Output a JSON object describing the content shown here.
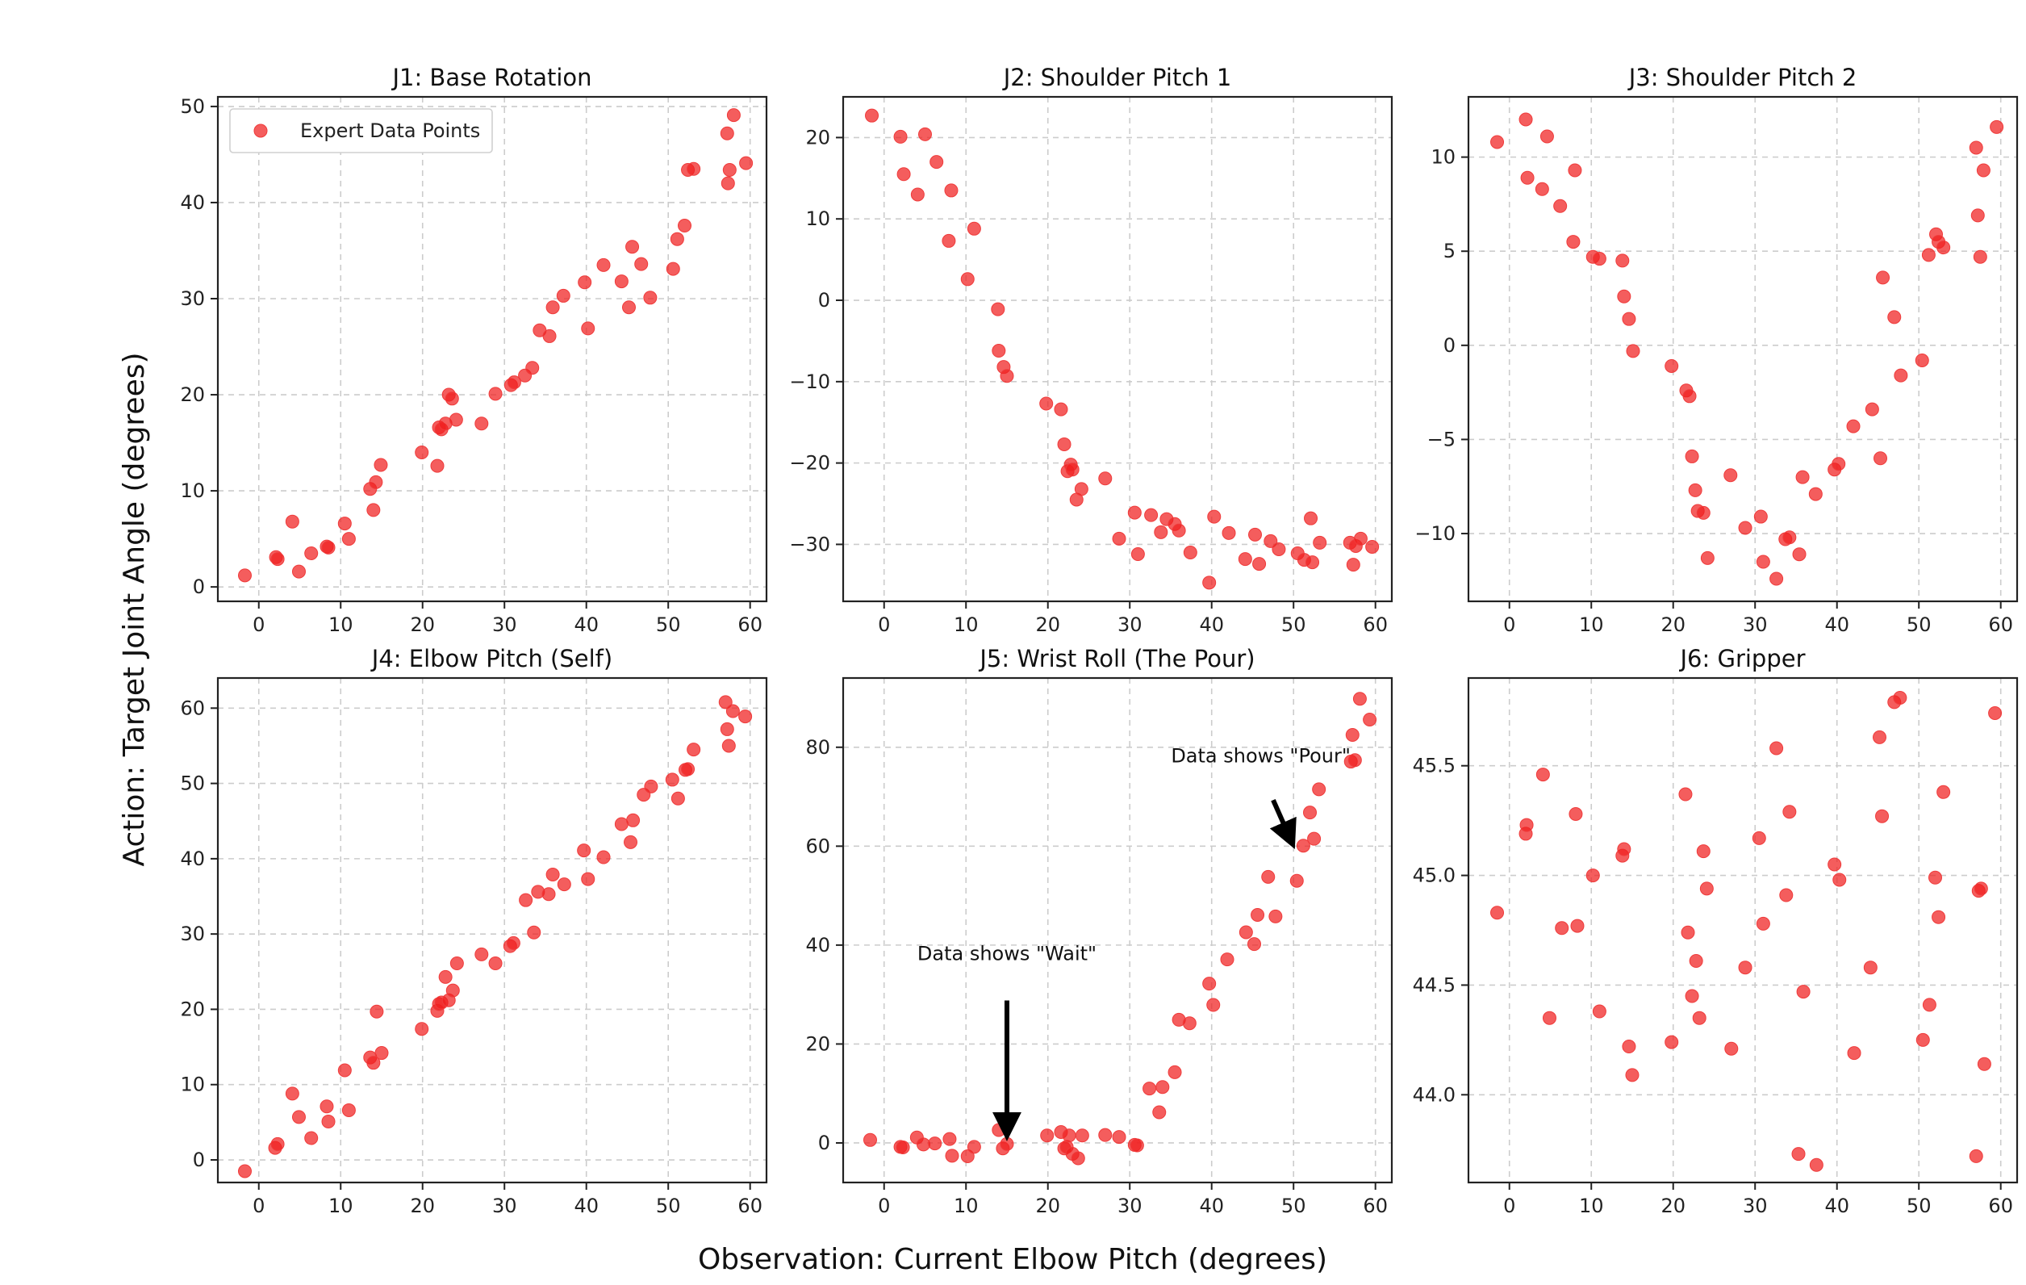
{
  "figure": {
    "xlabel": "Observation: Current Elbow Pitch (degrees)",
    "ylabel": "Action: Target Joint Angle (degrees)",
    "point_color": "#f01e1e",
    "legend_label": "Expert Data Points"
  },
  "chart_data": [
    {
      "type": "scatter",
      "title": "J1: Base Rotation",
      "xlim": [
        -5,
        62
      ],
      "ylim": [
        -1.5,
        51
      ],
      "xticks": [
        0,
        10,
        20,
        30,
        40,
        50,
        60
      ],
      "yticks": [
        0,
        10,
        20,
        30,
        40,
        50
      ],
      "grid": true,
      "legend": "top-left",
      "series": [
        {
          "name": "Expert Data Points",
          "x": [
            -1.7,
            2.1,
            2.3,
            4.1,
            4.9,
            6.4,
            8.3,
            8.5,
            10.5,
            11.0,
            13.6,
            14.0,
            14.3,
            14.9,
            19.9,
            21.8,
            22.0,
            22.3,
            22.8,
            23.2,
            23.6,
            24.1,
            27.2,
            28.9,
            30.8,
            31.2,
            32.5,
            33.4,
            34.3,
            35.5,
            35.9,
            37.2,
            39.8,
            40.2,
            42.1,
            44.3,
            45.2,
            45.6,
            46.7,
            47.8,
            50.6,
            51.1,
            52.0,
            52.4,
            53.1,
            57.2,
            57.3,
            57.5,
            58.0,
            59.5
          ],
          "y": [
            1.2,
            3.1,
            2.9,
            6.8,
            1.6,
            3.5,
            4.2,
            4.1,
            6.6,
            5.0,
            10.2,
            8.0,
            10.9,
            12.7,
            14.0,
            12.6,
            16.6,
            16.4,
            17.0,
            20.0,
            19.6,
            17.4,
            17.0,
            20.1,
            21.0,
            21.3,
            22.0,
            22.8,
            26.7,
            26.1,
            29.1,
            30.3,
            31.7,
            26.9,
            33.5,
            31.8,
            29.1,
            35.4,
            33.6,
            30.1,
            33.1,
            36.2,
            37.6,
            43.4,
            43.5,
            47.2,
            42.0,
            43.4,
            49.1,
            44.1
          ]
        }
      ]
    },
    {
      "type": "scatter",
      "title": "J2: Shoulder Pitch 1",
      "xlim": [
        -5,
        62
      ],
      "ylim": [
        -37,
        25
      ],
      "xticks": [
        0,
        10,
        20,
        30,
        40,
        50,
        60
      ],
      "yticks": [
        -30,
        -20,
        -10,
        0,
        10,
        20
      ],
      "grid": true,
      "series": [
        {
          "x": [
            -1.5,
            2.0,
            2.4,
            4.1,
            5.0,
            6.4,
            7.9,
            8.2,
            10.2,
            11.0,
            13.9,
            14.0,
            14.6,
            15.0,
            19.8,
            21.6,
            22.0,
            22.4,
            22.8,
            23.0,
            23.5,
            24.1,
            27.0,
            28.7,
            30.6,
            31.0,
            32.6,
            33.8,
            34.5,
            35.5,
            36.0,
            37.4,
            39.7,
            40.3,
            42.1,
            44.1,
            45.3,
            45.8,
            47.2,
            48.2,
            50.5,
            51.3,
            52.1,
            52.3,
            53.2,
            56.9,
            57.3,
            57.6,
            58.2,
            59.6
          ],
          "y": [
            22.7,
            20.1,
            15.5,
            13.0,
            20.4,
            17.0,
            7.3,
            13.5,
            2.6,
            8.8,
            -1.1,
            -6.2,
            -8.2,
            -9.3,
            -12.7,
            -13.4,
            -17.7,
            -21.0,
            -20.2,
            -20.8,
            -24.5,
            -23.2,
            -21.9,
            -29.3,
            -26.1,
            -31.2,
            -26.4,
            -28.5,
            -26.9,
            -27.5,
            -28.3,
            -31.0,
            -34.7,
            -26.6,
            -28.6,
            -31.8,
            -28.8,
            -32.4,
            -29.6,
            -30.6,
            -31.1,
            -31.9,
            -26.8,
            -32.2,
            -29.8,
            -29.8,
            -32.5,
            -30.2,
            -29.3,
            -30.3
          ]
        }
      ]
    },
    {
      "type": "scatter",
      "title": "J3: Shoulder Pitch 2",
      "xlim": [
        -5,
        62
      ],
      "ylim": [
        -13.6,
        13.2
      ],
      "xticks": [
        0,
        10,
        20,
        30,
        40,
        50,
        60
      ],
      "yticks": [
        -10,
        -5,
        0,
        5,
        10
      ],
      "grid": true,
      "series": [
        {
          "x": [
            -1.5,
            2.0,
            2.2,
            4.0,
            4.6,
            6.2,
            7.8,
            8.0,
            10.2,
            11.0,
            13.8,
            14.0,
            14.6,
            15.1,
            19.8,
            21.6,
            22.0,
            22.3,
            22.7,
            23.0,
            23.7,
            24.2,
            27.0,
            28.8,
            30.7,
            31.0,
            32.6,
            33.7,
            34.2,
            35.4,
            35.8,
            37.4,
            39.7,
            40.2,
            42.0,
            44.3,
            45.3,
            45.6,
            47.0,
            47.8,
            50.4,
            51.2,
            52.1,
            52.4,
            53.0,
            57.0,
            57.2,
            57.5,
            57.9,
            59.5
          ],
          "y": [
            10.8,
            12.0,
            8.9,
            8.3,
            11.1,
            7.4,
            5.5,
            9.3,
            4.7,
            4.6,
            4.5,
            2.6,
            1.4,
            -0.3,
            -1.1,
            -2.4,
            -2.7,
            -5.9,
            -7.7,
            -8.8,
            -8.9,
            -11.3,
            -6.9,
            -9.7,
            -9.1,
            -11.5,
            -12.4,
            -10.3,
            -10.2,
            -11.1,
            -7.0,
            -7.9,
            -6.6,
            -6.3,
            -4.3,
            -3.4,
            -6.0,
            3.6,
            1.5,
            -1.6,
            -0.8,
            4.8,
            5.9,
            5.5,
            5.2,
            10.5,
            6.9,
            4.7,
            9.3,
            11.6
          ]
        }
      ]
    },
    {
      "type": "scatter",
      "title": "J4: Elbow Pitch (Self)",
      "xlim": [
        -5,
        62
      ],
      "ylim": [
        -3,
        64
      ],
      "xticks": [
        0,
        10,
        20,
        30,
        40,
        50,
        60
      ],
      "yticks": [
        0,
        10,
        20,
        30,
        40,
        50,
        60
      ],
      "grid": true,
      "series": [
        {
          "x": [
            -1.7,
            2.0,
            2.3,
            4.1,
            4.9,
            6.4,
            8.3,
            8.5,
            10.5,
            11.0,
            13.6,
            14.0,
            14.4,
            15.0,
            19.9,
            21.8,
            22.0,
            22.3,
            22.8,
            23.2,
            23.7,
            24.2,
            27.2,
            28.9,
            30.7,
            31.1,
            32.6,
            33.6,
            34.1,
            35.4,
            35.9,
            37.3,
            39.7,
            40.2,
            42.1,
            44.3,
            45.4,
            45.7,
            47.0,
            47.9,
            50.5,
            51.2,
            52.1,
            52.4,
            53.1,
            57.0,
            57.2,
            57.4,
            57.9,
            59.4
          ],
          "y": [
            -1.5,
            1.6,
            2.1,
            8.8,
            5.7,
            2.9,
            7.1,
            5.1,
            11.9,
            6.6,
            13.6,
            12.9,
            19.7,
            14.2,
            17.4,
            19.8,
            20.7,
            20.9,
            24.3,
            21.2,
            22.5,
            26.1,
            27.3,
            26.1,
            28.4,
            28.8,
            34.5,
            30.2,
            35.6,
            35.3,
            37.9,
            36.6,
            41.1,
            37.3,
            40.2,
            44.6,
            42.2,
            45.1,
            48.5,
            49.6,
            50.5,
            48.0,
            51.8,
            51.9,
            54.5,
            60.8,
            57.2,
            55.0,
            59.6,
            58.9
          ]
        }
      ]
    },
    {
      "type": "scatter",
      "title": "J5: Wrist Roll (The Pour)",
      "xlim": [
        -5,
        62
      ],
      "ylim": [
        -8,
        94
      ],
      "xticks": [
        0,
        10,
        20,
        30,
        40,
        50,
        60
      ],
      "yticks": [
        0,
        20,
        40,
        60,
        80
      ],
      "grid": true,
      "series": [
        {
          "x": [
            -1.7,
            2.0,
            2.3,
            4.0,
            4.8,
            6.2,
            8.0,
            8.3,
            10.2,
            11.0,
            14.0,
            14.5,
            15.0,
            19.9,
            21.6,
            22.0,
            22.3,
            22.6,
            23.0,
            23.7,
            24.2,
            27.0,
            28.7,
            30.6,
            30.9,
            32.4,
            33.6,
            34.0,
            35.5,
            36.0,
            37.3,
            39.7,
            40.2,
            41.9,
            44.2,
            45.2,
            45.6,
            46.9,
            47.8,
            50.4,
            51.2,
            52.0,
            52.5,
            53.1,
            57.0,
            57.2,
            57.5,
            58.1,
            59.3
          ],
          "y": [
            0.6,
            -0.8,
            -0.9,
            1.1,
            -0.3,
            -0.1,
            0.8,
            -2.6,
            -2.7,
            -0.8,
            2.6,
            -1.1,
            -0.2,
            1.5,
            2.2,
            -1.1,
            -0.8,
            1.5,
            -2.2,
            -3.1,
            1.5,
            1.6,
            1.2,
            -0.4,
            -0.5,
            11.0,
            6.2,
            11.3,
            14.3,
            24.9,
            24.2,
            32.2,
            27.9,
            37.1,
            42.6,
            40.2,
            46.1,
            53.8,
            45.8,
            53.0,
            60.1,
            66.8,
            61.5,
            71.5,
            77.1,
            82.5,
            77.4,
            89.8,
            85.6
          ]
        }
      ],
      "annotations": [
        {
          "text": "Data shows \"Wait\"",
          "xy": [
            15,
            1
          ],
          "xytext": [
            15,
            35
          ]
        },
        {
          "text": "Data shows \"Pour\"",
          "xy": [
            50,
            60
          ],
          "xytext": [
            46,
            75
          ]
        }
      ]
    },
    {
      "type": "scatter",
      "title": "J6: Gripper",
      "xlim": [
        -5,
        62
      ],
      "ylim": [
        43.6,
        45.9
      ],
      "xticks": [
        0,
        10,
        20,
        30,
        40,
        50,
        60
      ],
      "yticks": [
        44.0,
        44.5,
        45.0,
        45.5
      ],
      "ytick_labels": [
        "44.0",
        "44.5",
        "45.0",
        "45.5"
      ],
      "grid": true,
      "series": [
        {
          "x": [
            -1.5,
            2.0,
            2.1,
            4.1,
            4.9,
            6.4,
            8.1,
            8.3,
            10.2,
            11.0,
            13.8,
            14.0,
            14.6,
            15.0,
            19.8,
            21.5,
            21.8,
            22.3,
            22.8,
            23.2,
            23.7,
            24.1,
            27.1,
            28.8,
            30.5,
            31.0,
            32.6,
            33.8,
            34.2,
            35.3,
            35.9,
            37.5,
            39.7,
            40.3,
            42.1,
            44.1,
            45.2,
            45.5,
            47.0,
            47.7,
            50.5,
            51.3,
            52.0,
            52.4,
            53.0,
            57.0,
            57.3,
            57.6,
            58.0,
            59.3
          ],
          "y": [
            44.83,
            45.19,
            45.23,
            45.46,
            44.35,
            44.76,
            45.28,
            44.77,
            45.0,
            44.38,
            45.09,
            45.12,
            44.22,
            44.09,
            44.24,
            45.37,
            44.74,
            44.45,
            44.61,
            44.35,
            45.11,
            44.94,
            44.21,
            44.58,
            45.17,
            44.78,
            45.58,
            44.91,
            45.29,
            43.73,
            44.47,
            43.68,
            45.05,
            44.98,
            44.19,
            44.58,
            45.63,
            45.27,
            45.79,
            45.81,
            44.25,
            44.41,
            44.99,
            44.81,
            45.38,
            43.72,
            44.93,
            44.94,
            44.14,
            45.74
          ]
        }
      ]
    }
  ]
}
